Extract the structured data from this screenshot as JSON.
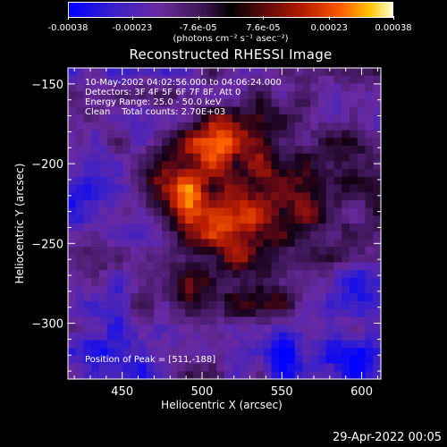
{
  "colorbar": {
    "ticks": [
      "-0.00038",
      "-0.00023",
      "-7.6e-05",
      "7.6e-05",
      "0.00023",
      "0.00038"
    ],
    "unit_label": "(photons cm⁻² s⁻¹ asec⁻²)"
  },
  "annotations": {
    "line1": "10-May-2002 04:02:56.000 to 04:06:24.000",
    "line2": "Detectors: 3F 4F 5F 6F 7F 8F, Att 0",
    "line3": "Energy Range: 25.0 - 50.0 keV",
    "line4": "Clean    Total counts: 2.70E+03",
    "peak": "Position of Peak = [511,-188]"
  },
  "footer": "29-Apr-2022 00:05",
  "chart_data": {
    "type": "heatmap",
    "title": "Reconstructed RHESSI Image",
    "xlabel": "Heliocentric X (arcsec)",
    "ylabel": "Heliocentric Y (arcsec)",
    "xlim": [
      416,
      612
    ],
    "ylim": [
      -335,
      -140
    ],
    "xticks": [
      450,
      500,
      550,
      600
    ],
    "yticks": [
      -150,
      -200,
      -250,
      -300
    ],
    "ytick_labels": [
      "−150",
      "−200",
      "−250",
      "−300"
    ],
    "colorbar_range": [
      -0.00038,
      0.00038
    ],
    "peak_position": [
      511,
      -188
    ],
    "sources": [
      {
        "x": 511,
        "y": -188,
        "value": 0.00038
      },
      {
        "x": 520,
        "y": -238,
        "value": 0.00034
      },
      {
        "x": 488,
        "y": -222,
        "value": 0.00027
      },
      {
        "x": 548,
        "y": -212,
        "value": 0.00025
      },
      {
        "x": 472,
        "y": -205,
        "value": 0.00018
      },
      {
        "x": 495,
        "y": -278,
        "value": 0.00021
      },
      {
        "x": 540,
        "y": -275,
        "value": 0.00018
      },
      {
        "x": 575,
        "y": -235,
        "value": 0.00017
      },
      {
        "x": 555,
        "y": -172,
        "value": 0.00013
      },
      {
        "x": 587,
        "y": -203,
        "value": 0.00012
      },
      {
        "x": 575,
        "y": -300,
        "value": 8e-05
      },
      {
        "x": 448,
        "y": -170,
        "value": -8e-05
      },
      {
        "x": 432,
        "y": -300,
        "value": -0.00012
      },
      {
        "x": 595,
        "y": -325,
        "value": -0.00018
      },
      {
        "x": 555,
        "y": -318,
        "value": -0.00015
      },
      {
        "x": 598,
        "y": -275,
        "value": -0.00012
      },
      {
        "x": 430,
        "y": -230,
        "value": -0.0001
      },
      {
        "x": 460,
        "y": -325,
        "value": -0.0001
      }
    ]
  }
}
